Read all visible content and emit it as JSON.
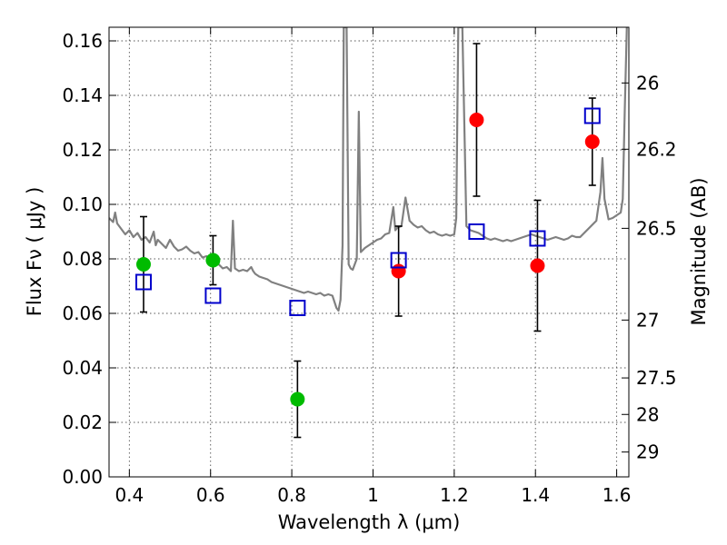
{
  "chart_data": {
    "type": "scatter",
    "xlabel": "Wavelength  λ (μm)",
    "ylabel": "Flux  Fν  ( μJy )",
    "y2label": "Magnitude (AB)",
    "xlim": [
      0.35,
      1.63
    ],
    "ylim": [
      0.0,
      0.165
    ],
    "grid": true,
    "x_ticks": [
      0.4,
      0.6,
      0.8,
      1.0,
      1.2,
      1.4,
      1.6
    ],
    "x_tick_labels": [
      "0.4",
      "0.6",
      "0.8",
      "1",
      "1.2",
      "1.4",
      "1.6"
    ],
    "y_ticks": [
      0.0,
      0.02,
      0.04,
      0.06,
      0.08,
      0.1,
      0.12,
      0.14,
      0.16
    ],
    "y_tick_labels": [
      "0.00",
      "0.02",
      "0.04",
      "0.06",
      "0.08",
      "0.10",
      "0.12",
      "0.14",
      "0.16"
    ],
    "y2_ticks": [
      26,
      26.2,
      26.5,
      27,
      27.5,
      28,
      29
    ],
    "y2_tick_labels": [
      "26",
      "26.2",
      "26.5",
      "27",
      "27.5",
      "28",
      "29"
    ],
    "colors": {
      "green": "#00bb00",
      "red": "#ff0000",
      "blue": "#0000cc",
      "spectrum": "#808080",
      "errorbar": "#000000"
    },
    "series": [
      {
        "marker": "circle",
        "color": "#00bb00",
        "points": [
          {
            "x": 0.435,
            "y": 0.078,
            "err": 0.0175
          },
          {
            "x": 0.606,
            "y": 0.0795,
            "err": 0.009
          },
          {
            "x": 0.814,
            "y": 0.0285,
            "err": 0.014
          }
        ]
      },
      {
        "marker": "circle",
        "color": "#ff0000",
        "points": [
          {
            "x": 1.063,
            "y": 0.0755,
            "err": 0.0165
          },
          {
            "x": 1.255,
            "y": 0.131,
            "err": 0.028
          },
          {
            "x": 1.405,
            "y": 0.0775,
            "err": 0.024
          },
          {
            "x": 1.54,
            "y": 0.123,
            "err": 0.016
          }
        ]
      },
      {
        "marker": "square",
        "color": "#0000cc",
        "points": [
          {
            "x": 0.435,
            "y": 0.0715
          },
          {
            "x": 0.606,
            "y": 0.0665
          },
          {
            "x": 0.814,
            "y": 0.062
          },
          {
            "x": 1.063,
            "y": 0.0795
          },
          {
            "x": 1.255,
            "y": 0.09
          },
          {
            "x": 1.405,
            "y": 0.0875
          },
          {
            "x": 1.54,
            "y": 0.1325
          }
        ]
      },
      {
        "marker": "line",
        "color": "#808080",
        "points": [
          [
            0.35,
            0.095
          ],
          [
            0.36,
            0.0935
          ],
          [
            0.365,
            0.097
          ],
          [
            0.37,
            0.093
          ],
          [
            0.38,
            0.091
          ],
          [
            0.39,
            0.089
          ],
          [
            0.4,
            0.0905
          ],
          [
            0.41,
            0.088
          ],
          [
            0.42,
            0.0895
          ],
          [
            0.43,
            0.087
          ],
          [
            0.44,
            0.088
          ],
          [
            0.45,
            0.086
          ],
          [
            0.46,
            0.09
          ],
          [
            0.465,
            0.085
          ],
          [
            0.47,
            0.087
          ],
          [
            0.48,
            0.0855
          ],
          [
            0.49,
            0.084
          ],
          [
            0.5,
            0.087
          ],
          [
            0.51,
            0.0845
          ],
          [
            0.52,
            0.083
          ],
          [
            0.53,
            0.0835
          ],
          [
            0.54,
            0.0845
          ],
          [
            0.55,
            0.083
          ],
          [
            0.56,
            0.082
          ],
          [
            0.57,
            0.0825
          ],
          [
            0.58,
            0.0805
          ],
          [
            0.59,
            0.081
          ],
          [
            0.6,
            0.0795
          ],
          [
            0.61,
            0.0785
          ],
          [
            0.62,
            0.078
          ],
          [
            0.63,
            0.0765
          ],
          [
            0.64,
            0.077
          ],
          [
            0.65,
            0.0755
          ],
          [
            0.655,
            0.094
          ],
          [
            0.66,
            0.0765
          ],
          [
            0.67,
            0.0755
          ],
          [
            0.68,
            0.076
          ],
          [
            0.69,
            0.0755
          ],
          [
            0.7,
            0.077
          ],
          [
            0.705,
            0.0755
          ],
          [
            0.71,
            0.0745
          ],
          [
            0.72,
            0.0735
          ],
          [
            0.73,
            0.073
          ],
          [
            0.74,
            0.0725
          ],
          [
            0.75,
            0.0715
          ],
          [
            0.76,
            0.071
          ],
          [
            0.77,
            0.0705
          ],
          [
            0.78,
            0.07
          ],
          [
            0.79,
            0.0695
          ],
          [
            0.8,
            0.069
          ],
          [
            0.81,
            0.0685
          ],
          [
            0.82,
            0.068
          ],
          [
            0.83,
            0.0675
          ],
          [
            0.84,
            0.068
          ],
          [
            0.85,
            0.0675
          ],
          [
            0.86,
            0.067
          ],
          [
            0.87,
            0.0675
          ],
          [
            0.88,
            0.0665
          ],
          [
            0.89,
            0.067
          ],
          [
            0.9,
            0.0665
          ],
          [
            0.91,
            0.062
          ],
          [
            0.915,
            0.061
          ],
          [
            0.92,
            0.065
          ],
          [
            0.925,
            0.085
          ],
          [
            0.928,
            0.165
          ],
          [
            0.935,
            0.165
          ],
          [
            0.94,
            0.078
          ],
          [
            0.945,
            0.0765
          ],
          [
            0.95,
            0.076
          ],
          [
            0.96,
            0.08
          ],
          [
            0.965,
            0.134
          ],
          [
            0.97,
            0.0825
          ],
          [
            0.98,
            0.084
          ],
          [
            0.99,
            0.085
          ],
          [
            1.0,
            0.086
          ],
          [
            1.01,
            0.087
          ],
          [
            1.02,
            0.0875
          ],
          [
            1.03,
            0.089
          ],
          [
            1.04,
            0.0895
          ],
          [
            1.05,
            0.099
          ],
          [
            1.055,
            0.0905
          ],
          [
            1.06,
            0.0915
          ],
          [
            1.07,
            0.092
          ],
          [
            1.08,
            0.1025
          ],
          [
            1.09,
            0.094
          ],
          [
            1.1,
            0.0925
          ],
          [
            1.11,
            0.0915
          ],
          [
            1.12,
            0.092
          ],
          [
            1.13,
            0.0905
          ],
          [
            1.14,
            0.0895
          ],
          [
            1.15,
            0.09
          ],
          [
            1.16,
            0.089
          ],
          [
            1.17,
            0.0885
          ],
          [
            1.18,
            0.089
          ],
          [
            1.19,
            0.0885
          ],
          [
            1.2,
            0.089
          ],
          [
            1.205,
            0.095
          ],
          [
            1.21,
            0.165
          ],
          [
            1.22,
            0.165
          ],
          [
            1.23,
            0.092
          ],
          [
            1.24,
            0.0905
          ],
          [
            1.25,
            0.09
          ],
          [
            1.26,
            0.0895
          ],
          [
            1.27,
            0.0885
          ],
          [
            1.28,
            0.0875
          ],
          [
            1.29,
            0.087
          ],
          [
            1.3,
            0.0875
          ],
          [
            1.31,
            0.087
          ],
          [
            1.32,
            0.0865
          ],
          [
            1.33,
            0.087
          ],
          [
            1.34,
            0.0865
          ],
          [
            1.35,
            0.087
          ],
          [
            1.36,
            0.0875
          ],
          [
            1.37,
            0.088
          ],
          [
            1.38,
            0.0885
          ],
          [
            1.39,
            0.089
          ],
          [
            1.4,
            0.0885
          ],
          [
            1.41,
            0.088
          ],
          [
            1.42,
            0.0875
          ],
          [
            1.43,
            0.087
          ],
          [
            1.44,
            0.0875
          ],
          [
            1.45,
            0.088
          ],
          [
            1.46,
            0.0875
          ],
          [
            1.47,
            0.087
          ],
          [
            1.48,
            0.0875
          ],
          [
            1.49,
            0.0885
          ],
          [
            1.5,
            0.088
          ],
          [
            1.51,
            0.088
          ],
          [
            1.52,
            0.0895
          ],
          [
            1.53,
            0.091
          ],
          [
            1.54,
            0.0925
          ],
          [
            1.55,
            0.094
          ],
          [
            1.56,
            0.1045
          ],
          [
            1.565,
            0.117
          ],
          [
            1.57,
            0.102
          ],
          [
            1.58,
            0.0945
          ],
          [
            1.59,
            0.095
          ],
          [
            1.6,
            0.096
          ],
          [
            1.61,
            0.097
          ],
          [
            1.615,
            0.102
          ],
          [
            1.62,
            0.135
          ],
          [
            1.625,
            0.165
          ]
        ]
      }
    ]
  }
}
